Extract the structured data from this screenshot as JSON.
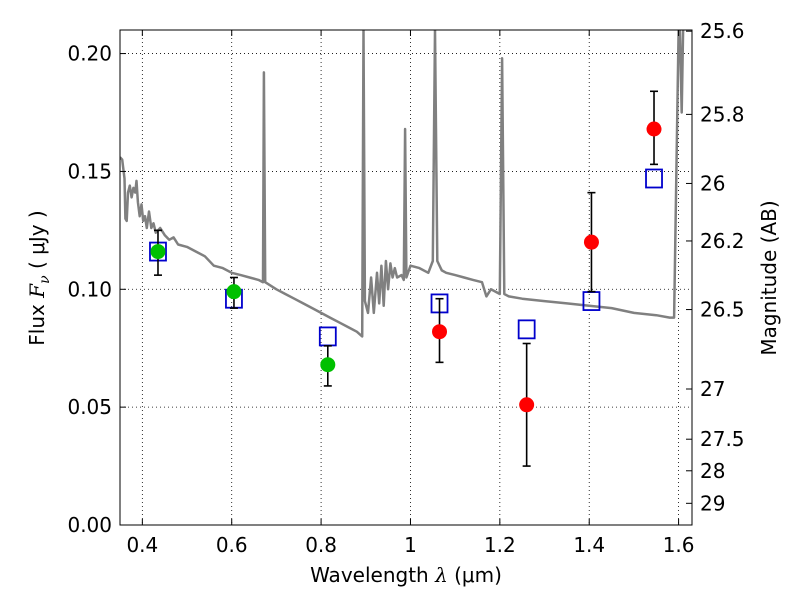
{
  "chart_data": {
    "type": "scatter",
    "xlabel": {
      "prefix": "Wavelength  ",
      "symbol": "λ",
      "units": " (μm)"
    },
    "ylabel": {
      "prefix": "Flux  ",
      "symbol": "F",
      "subscript": "ν",
      "units": "  ( μJy )"
    },
    "y2label": "Magnitude (AB)",
    "xlim": [
      0.35,
      1.63
    ],
    "ylim": [
      0.0,
      0.21
    ],
    "grid": true,
    "x_ticks": [
      {
        "value": 0.4,
        "label": "0.4"
      },
      {
        "value": 0.6,
        "label": "0.6"
      },
      {
        "value": 0.8,
        "label": "0.8"
      },
      {
        "value": 1.0,
        "label": "1"
      },
      {
        "value": 1.2,
        "label": "1.2"
      },
      {
        "value": 1.4,
        "label": "1.4"
      },
      {
        "value": 1.6,
        "label": "1.6"
      }
    ],
    "y_ticks": [
      {
        "value": 0.0,
        "label": "0.00"
      },
      {
        "value": 0.05,
        "label": "0.05"
      },
      {
        "value": 0.1,
        "label": "0.10"
      },
      {
        "value": 0.15,
        "label": "0.15"
      },
      {
        "value": 0.2,
        "label": "0.20"
      }
    ],
    "y2_ticks": [
      {
        "label": "25.6",
        "flux": 0.2095
      },
      {
        "label": "25.8",
        "flux": 0.1742
      },
      {
        "label": "26",
        "flux": 0.1449
      },
      {
        "label": "26.2",
        "flux": 0.1205
      },
      {
        "label": "26.5",
        "flux": 0.0914
      },
      {
        "label": "27",
        "flux": 0.0577
      },
      {
        "label": "27.5",
        "flux": 0.0364
      },
      {
        "label": "28",
        "flux": 0.023
      },
      {
        "label": "29",
        "flux": 0.0092
      }
    ],
    "series": [
      {
        "kind": "model_spectrum",
        "color": "#808080",
        "points": [
          [
            0.35,
            0.156
          ],
          [
            0.355,
            0.155
          ],
          [
            0.36,
            0.147
          ],
          [
            0.362,
            0.13
          ],
          [
            0.365,
            0.129
          ],
          [
            0.368,
            0.141
          ],
          [
            0.372,
            0.144
          ],
          [
            0.376,
            0.139
          ],
          [
            0.38,
            0.143
          ],
          [
            0.384,
            0.141
          ],
          [
            0.387,
            0.146
          ],
          [
            0.39,
            0.137
          ],
          [
            0.394,
            0.131
          ],
          [
            0.398,
            0.136
          ],
          [
            0.402,
            0.129
          ],
          [
            0.406,
            0.131
          ],
          [
            0.41,
            0.126
          ],
          [
            0.415,
            0.133
          ],
          [
            0.42,
            0.126
          ],
          [
            0.425,
            0.128
          ],
          [
            0.43,
            0.124
          ],
          [
            0.44,
            0.126
          ],
          [
            0.45,
            0.123
          ],
          [
            0.46,
            0.121
          ],
          [
            0.47,
            0.122
          ],
          [
            0.48,
            0.119
          ],
          [
            0.5,
            0.118
          ],
          [
            0.52,
            0.116
          ],
          [
            0.54,
            0.114
          ],
          [
            0.56,
            0.11
          ],
          [
            0.58,
            0.109
          ],
          [
            0.6,
            0.107
          ],
          [
            0.62,
            0.106
          ],
          [
            0.64,
            0.105
          ],
          [
            0.66,
            0.104
          ],
          [
            0.67,
            0.103
          ],
          [
            0.672,
            0.192
          ],
          [
            0.675,
            0.103
          ],
          [
            0.7,
            0.1
          ],
          [
            0.72,
            0.098
          ],
          [
            0.74,
            0.096
          ],
          [
            0.76,
            0.094
          ],
          [
            0.78,
            0.092
          ],
          [
            0.8,
            0.09
          ],
          [
            0.82,
            0.088
          ],
          [
            0.84,
            0.086
          ],
          [
            0.86,
            0.084
          ],
          [
            0.88,
            0.082
          ],
          [
            0.892,
            0.08
          ],
          [
            0.895,
            0.21
          ],
          [
            0.898,
            0.095
          ],
          [
            0.905,
            0.09
          ],
          [
            0.912,
            0.105
          ],
          [
            0.918,
            0.09
          ],
          [
            0.925,
            0.107
          ],
          [
            0.93,
            0.094
          ],
          [
            0.935,
            0.11
          ],
          [
            0.94,
            0.093
          ],
          [
            0.945,
            0.112
          ],
          [
            0.95,
            0.1
          ],
          [
            0.955,
            0.111
          ],
          [
            0.96,
            0.105
          ],
          [
            0.965,
            0.109
          ],
          [
            0.97,
            0.105
          ],
          [
            0.98,
            0.106
          ],
          [
            0.985,
            0.104
          ],
          [
            0.988,
            0.168
          ],
          [
            0.991,
            0.105
          ],
          [
            1.0,
            0.11
          ],
          [
            1.02,
            0.109
          ],
          [
            1.04,
            0.107
          ],
          [
            1.05,
            0.112
          ],
          [
            1.055,
            0.21
          ],
          [
            1.06,
            0.112
          ],
          [
            1.07,
            0.108
          ],
          [
            1.08,
            0.107
          ],
          [
            1.1,
            0.106
          ],
          [
            1.12,
            0.105
          ],
          [
            1.14,
            0.104
          ],
          [
            1.16,
            0.103
          ],
          [
            1.17,
            0.097
          ],
          [
            1.18,
            0.1
          ],
          [
            1.19,
            0.099
          ],
          [
            1.2,
            0.098
          ],
          [
            1.205,
            0.198
          ],
          [
            1.21,
            0.098
          ],
          [
            1.22,
            0.097
          ],
          [
            1.25,
            0.096
          ],
          [
            1.3,
            0.095
          ],
          [
            1.35,
            0.094
          ],
          [
            1.4,
            0.093
          ],
          [
            1.45,
            0.092
          ],
          [
            1.5,
            0.09
          ],
          [
            1.55,
            0.089
          ],
          [
            1.58,
            0.088
          ],
          [
            1.59,
            0.088
          ],
          [
            1.6,
            0.21
          ],
          [
            1.603,
            0.21
          ],
          [
            1.607,
            0.175
          ],
          [
            1.61,
            0.21
          ]
        ]
      },
      {
        "kind": "model_photometry",
        "marker": "open_square",
        "color": "#0000cc",
        "points": [
          [
            0.435,
            0.116
          ],
          [
            0.605,
            0.096
          ],
          [
            0.815,
            0.08
          ],
          [
            1.065,
            0.094
          ],
          [
            1.26,
            0.083
          ],
          [
            1.405,
            0.095
          ],
          [
            1.545,
            0.147
          ]
        ]
      },
      {
        "kind": "observed_photometry",
        "marker": "filled_circle",
        "color": "#00c000",
        "errorbar_color": "#000000",
        "points": [
          {
            "x": 0.435,
            "y": 0.116,
            "lo": 0.106,
            "hi": 0.125
          },
          {
            "x": 0.605,
            "y": 0.099,
            "lo": 0.092,
            "hi": 0.105
          },
          {
            "x": 0.815,
            "y": 0.068,
            "lo": 0.059,
            "hi": 0.076
          }
        ]
      },
      {
        "kind": "observed_photometry",
        "marker": "filled_circle",
        "color": "#ff0000",
        "errorbar_color": "#000000",
        "points": [
          {
            "x": 1.065,
            "y": 0.082,
            "lo": 0.069,
            "hi": 0.096
          },
          {
            "x": 1.26,
            "y": 0.051,
            "lo": 0.025,
            "hi": 0.077
          },
          {
            "x": 1.405,
            "y": 0.12,
            "lo": 0.099,
            "hi": 0.141
          },
          {
            "x": 1.545,
            "y": 0.168,
            "lo": 0.153,
            "hi": 0.184
          }
        ]
      }
    ]
  }
}
